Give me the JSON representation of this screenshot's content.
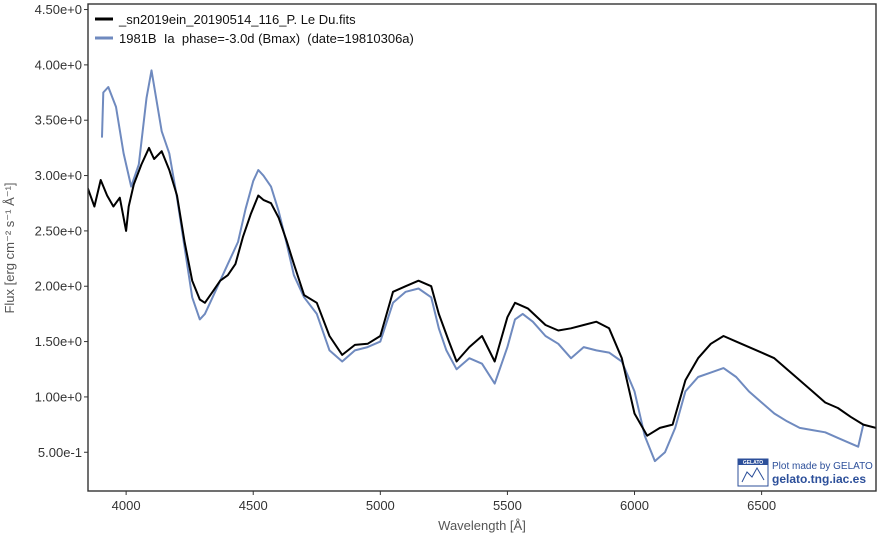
{
  "chart_data": {
    "type": "line",
    "xlabel": "Wavelength [Å]",
    "ylabel": "Flux [erg cm⁻² s⁻¹ Å⁻¹]",
    "xlim": [
      3850,
      6950
    ],
    "ylim": [
      0.15,
      4.55
    ],
    "x_ticks": [
      4000,
      4500,
      5000,
      5500,
      6000,
      6500
    ],
    "x_tick_labels": [
      "4000",
      "4500",
      "5000",
      "5500",
      "6000",
      "6500"
    ],
    "y_ticks": [
      0.5,
      1.0,
      1.5,
      2.0,
      2.5,
      3.0,
      3.5,
      4.0,
      4.5
    ],
    "y_tick_labels": [
      "5.00e-1",
      "1.00e+0",
      "1.50e+0",
      "2.00e+0",
      "2.50e+0",
      "3.00e+0",
      "3.50e+0",
      "4.00e+0",
      "4.50e+0"
    ],
    "grid": false,
    "legend_position": "top-left",
    "series": [
      {
        "name": "_sn2019ein_20190514_116_P. Le Du.fits",
        "color": "#000000",
        "x": [
          3850,
          3875,
          3900,
          3925,
          3950,
          3975,
          4000,
          4010,
          4030,
          4060,
          4090,
          4110,
          4140,
          4170,
          4200,
          4230,
          4260,
          4290,
          4310,
          4340,
          4370,
          4400,
          4430,
          4460,
          4490,
          4520,
          4540,
          4570,
          4600,
          4630,
          4660,
          4700,
          4750,
          4800,
          4850,
          4900,
          4950,
          5000,
          5050,
          5100,
          5150,
          5200,
          5230,
          5270,
          5300,
          5350,
          5400,
          5450,
          5500,
          5530,
          5580,
          5650,
          5700,
          5750,
          5800,
          5850,
          5900,
          5950,
          6000,
          6050,
          6100,
          6150,
          6200,
          6250,
          6300,
          6350,
          6400,
          6450,
          6500,
          6550,
          6600,
          6650,
          6700,
          6750,
          6800,
          6850,
          6900,
          6950
        ],
        "y": [
          2.88,
          2.72,
          2.96,
          2.82,
          2.72,
          2.8,
          2.5,
          2.72,
          2.92,
          3.1,
          3.25,
          3.15,
          3.22,
          3.05,
          2.82,
          2.4,
          2.05,
          1.88,
          1.85,
          1.95,
          2.05,
          2.1,
          2.2,
          2.45,
          2.65,
          2.82,
          2.78,
          2.75,
          2.62,
          2.42,
          2.2,
          1.92,
          1.85,
          1.55,
          1.38,
          1.47,
          1.48,
          1.55,
          1.95,
          2.0,
          2.05,
          2.0,
          1.75,
          1.5,
          1.32,
          1.45,
          1.55,
          1.32,
          1.72,
          1.85,
          1.8,
          1.65,
          1.6,
          1.62,
          1.65,
          1.68,
          1.62,
          1.35,
          0.85,
          0.65,
          0.72,
          0.75,
          1.15,
          1.35,
          1.48,
          1.55,
          1.5,
          1.45,
          1.4,
          1.35,
          1.25,
          1.15,
          1.05,
          0.95,
          0.9,
          0.82,
          0.75,
          0.72
        ]
      },
      {
        "name": "1981B  Ia  phase=-3.0d (Bmax)  (date=19810306a)",
        "color": "#6f8abf",
        "x": [
          3905,
          3910,
          3930,
          3960,
          3990,
          4020,
          4050,
          4080,
          4100,
          4140,
          4170,
          4200,
          4230,
          4260,
          4290,
          4310,
          4340,
          4370,
          4400,
          4440,
          4470,
          4500,
          4520,
          4540,
          4570,
          4600,
          4630,
          4660,
          4700,
          4750,
          4800,
          4850,
          4900,
          4950,
          5000,
          5050,
          5100,
          5150,
          5200,
          5230,
          5260,
          5300,
          5350,
          5400,
          5450,
          5500,
          5530,
          5560,
          5600,
          5650,
          5700,
          5750,
          5800,
          5850,
          5900,
          5950,
          6000,
          6040,
          6080,
          6120,
          6160,
          6200,
          6250,
          6300,
          6350,
          6400,
          6450,
          6500,
          6550,
          6600,
          6650,
          6700,
          6750,
          6800,
          6850,
          6880,
          6900
        ],
        "y": [
          3.35,
          3.75,
          3.8,
          3.62,
          3.2,
          2.9,
          3.1,
          3.7,
          3.95,
          3.4,
          3.2,
          2.8,
          2.35,
          1.9,
          1.7,
          1.75,
          1.9,
          2.05,
          2.2,
          2.4,
          2.7,
          2.95,
          3.05,
          3.0,
          2.9,
          2.68,
          2.4,
          2.1,
          1.9,
          1.75,
          1.42,
          1.32,
          1.42,
          1.45,
          1.5,
          1.85,
          1.95,
          1.98,
          1.9,
          1.62,
          1.42,
          1.25,
          1.35,
          1.3,
          1.12,
          1.45,
          1.7,
          1.75,
          1.68,
          1.55,
          1.48,
          1.35,
          1.45,
          1.42,
          1.4,
          1.32,
          1.05,
          0.65,
          0.42,
          0.5,
          0.72,
          1.05,
          1.18,
          1.22,
          1.26,
          1.18,
          1.05,
          0.95,
          0.85,
          0.78,
          0.72,
          0.7,
          0.68,
          0.63,
          0.58,
          0.55,
          0.75
        ]
      }
    ]
  },
  "watermark": {
    "badge": "GELATO",
    "line1": "Plot made by GELATO",
    "line2": "gelato.tng.iac.es",
    "color": "#2c4f9a"
  }
}
